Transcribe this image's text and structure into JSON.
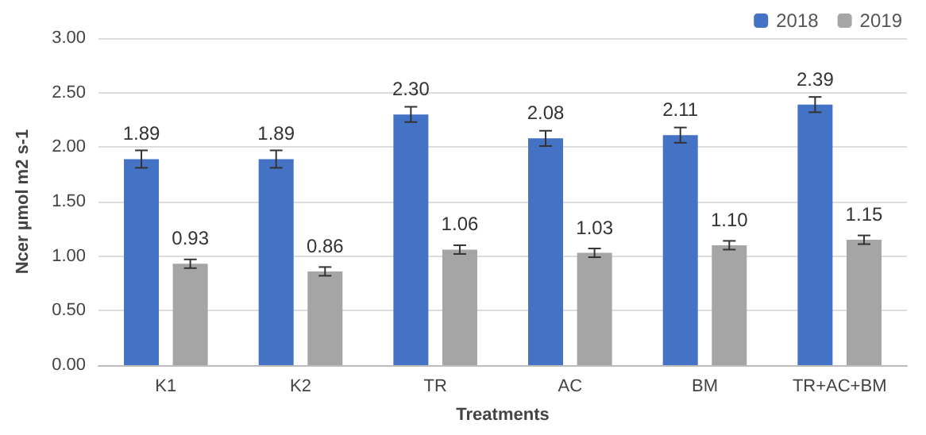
{
  "chart_data": {
    "type": "bar",
    "xlabel": "Treatments",
    "ylabel": "Ncer µmol m2 s-1",
    "categories": [
      "K1",
      "K2",
      "TR",
      "AC",
      "BM",
      "TR+AC+BM"
    ],
    "series": [
      {
        "name": "2018",
        "color": "#4472c4",
        "values": [
          1.89,
          1.89,
          2.3,
          2.08,
          2.11,
          2.39
        ],
        "value_labels": [
          "1.89",
          "1.89",
          "2.30",
          "2.08",
          "2.11",
          "2.39"
        ],
        "errors": [
          0.08,
          0.08,
          0.07,
          0.07,
          0.07,
          0.07
        ]
      },
      {
        "name": "2019",
        "color": "#a5a5a5",
        "values": [
          0.93,
          0.86,
          1.06,
          1.03,
          1.1,
          1.15
        ],
        "value_labels": [
          "0.93",
          "0.86",
          "1.06",
          "1.03",
          "1.10",
          "1.15"
        ],
        "errors": [
          0.04,
          0.04,
          0.04,
          0.04,
          0.04,
          0.04
        ]
      }
    ],
    "ylim": [
      0,
      3
    ],
    "yticks": [
      {
        "value": 0,
        "label": "0.00"
      },
      {
        "value": 0.5,
        "label": "0.50"
      },
      {
        "value": 1,
        "label": "1.00"
      },
      {
        "value": 1.5,
        "label": "1.50"
      },
      {
        "value": 2,
        "label": "2.00"
      },
      {
        "value": 2.5,
        "label": "2.50"
      },
      {
        "value": 3,
        "label": "3.00"
      }
    ],
    "grid": "y",
    "legend": "top right"
  }
}
